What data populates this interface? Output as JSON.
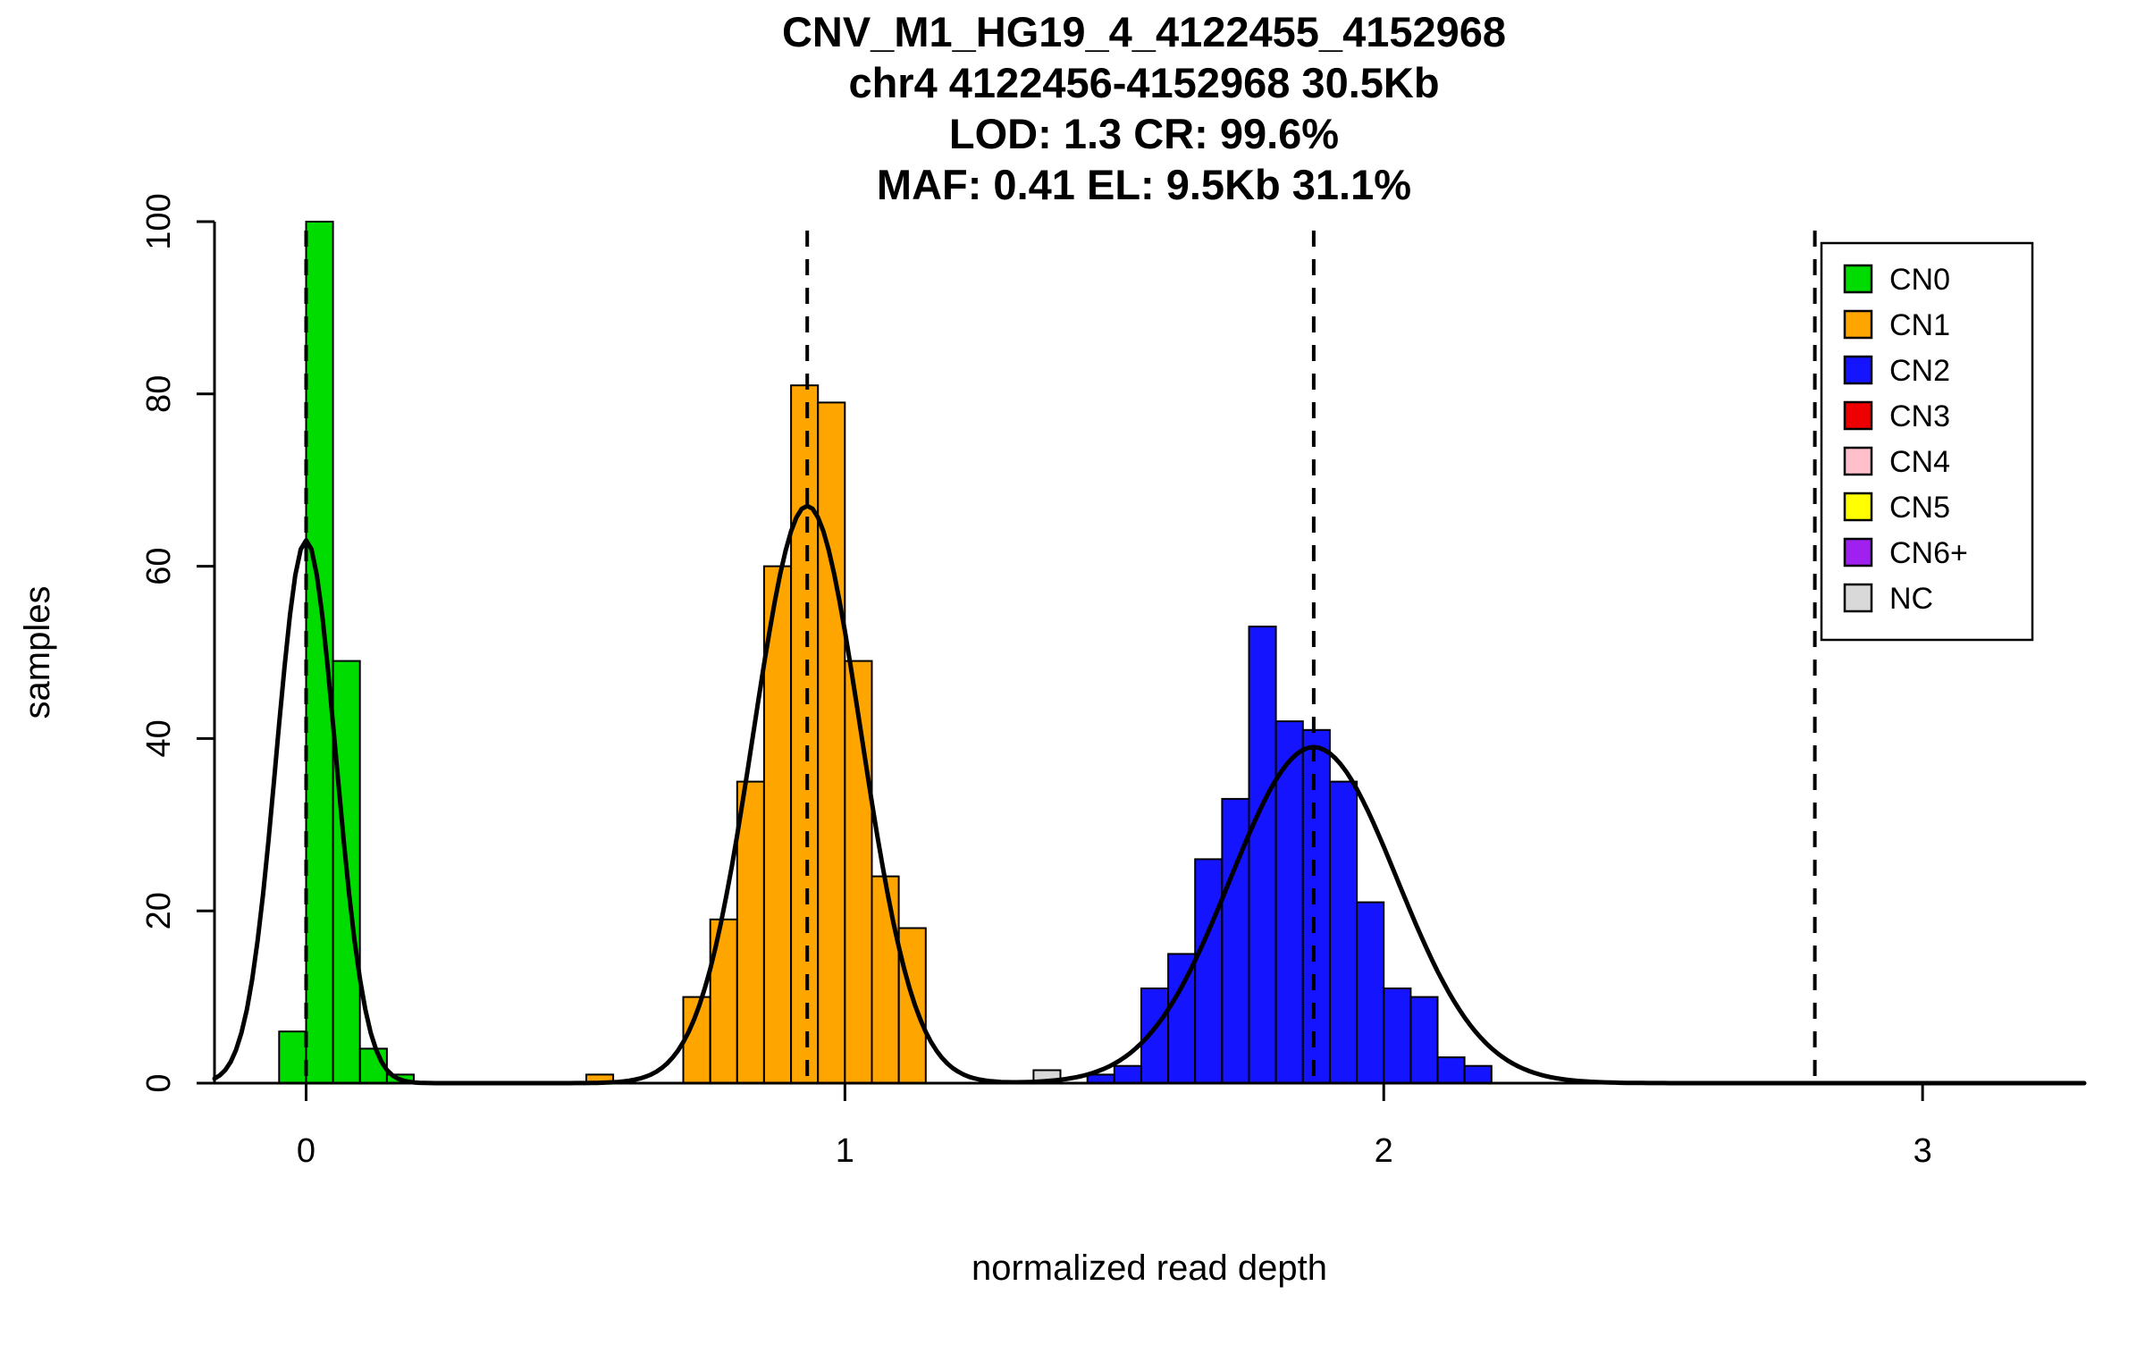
{
  "title": {
    "line1": "CNV_M1_HG19_4_4122455_4152968",
    "line2": "chr4 4122456-4152968 30.5Kb",
    "line3": "LOD: 1.3 CR: 99.6%",
    "line4": "MAF: 0.41 EL: 9.5Kb 31.1%"
  },
  "chart_data": {
    "type": "bar",
    "subtype": "histogram_with_density_curves",
    "xlabel": "normalized read depth",
    "ylabel": "samples",
    "xlim": [
      -0.17,
      3.3
    ],
    "ylim": [
      0,
      100
    ],
    "x_ticks": [
      0,
      1,
      2,
      3
    ],
    "y_ticks": [
      0,
      20,
      40,
      60,
      80,
      100
    ],
    "bin_width": 0.05,
    "grid": false,
    "legend_position": "top-right",
    "series": [
      {
        "name": "CN0",
        "color": "#00DB00",
        "bars": [
          {
            "x": -0.05,
            "h": 6
          },
          {
            "x": 0.0,
            "h": 100
          },
          {
            "x": 0.05,
            "h": 49
          },
          {
            "x": 0.1,
            "h": 4
          },
          {
            "x": 0.15,
            "h": 1
          }
        ]
      },
      {
        "name": "CN1",
        "color": "#FFA500",
        "bars": [
          {
            "x": 0.52,
            "h": 1
          },
          {
            "x": 0.7,
            "h": 10
          },
          {
            "x": 0.75,
            "h": 19
          },
          {
            "x": 0.8,
            "h": 35
          },
          {
            "x": 0.85,
            "h": 60
          },
          {
            "x": 0.9,
            "h": 81
          },
          {
            "x": 0.95,
            "h": 79
          },
          {
            "x": 1.0,
            "h": 49
          },
          {
            "x": 1.05,
            "h": 24
          },
          {
            "x": 1.1,
            "h": 18
          }
        ]
      },
      {
        "name": "NC",
        "color": "#D9D9D9",
        "bars": [
          {
            "x": 1.35,
            "h": 1.5
          }
        ]
      },
      {
        "name": "CN2",
        "color": "#1414FF",
        "bars": [
          {
            "x": 1.45,
            "h": 1
          },
          {
            "x": 1.5,
            "h": 2
          },
          {
            "x": 1.55,
            "h": 11
          },
          {
            "x": 1.6,
            "h": 15
          },
          {
            "x": 1.65,
            "h": 26
          },
          {
            "x": 1.7,
            "h": 33
          },
          {
            "x": 1.75,
            "h": 53
          },
          {
            "x": 1.8,
            "h": 42
          },
          {
            "x": 1.85,
            "h": 41
          },
          {
            "x": 1.9,
            "h": 35
          },
          {
            "x": 1.95,
            "h": 21
          },
          {
            "x": 2.0,
            "h": 11
          },
          {
            "x": 2.05,
            "h": 10
          },
          {
            "x": 2.1,
            "h": 3
          },
          {
            "x": 2.15,
            "h": 2
          }
        ]
      }
    ],
    "density_components": [
      {
        "mean": 0.0,
        "sd": 0.055,
        "peak": 63
      },
      {
        "mean": 0.93,
        "sd": 0.1,
        "peak": 67
      },
      {
        "mean": 1.87,
        "sd": 0.155,
        "peak": 39
      }
    ],
    "mean_lines": [
      0.0,
      0.93,
      1.87,
      2.8
    ],
    "legend": [
      {
        "label": "CN0",
        "color": "#00DB00"
      },
      {
        "label": "CN1",
        "color": "#FFA500"
      },
      {
        "label": "CN2",
        "color": "#1414FF"
      },
      {
        "label": "CN3",
        "color": "#EE0000"
      },
      {
        "label": "CN4",
        "color": "#FFC0CB"
      },
      {
        "label": "CN5",
        "color": "#FFFF00"
      },
      {
        "label": "CN6+",
        "color": "#A020F0"
      },
      {
        "label": "NC",
        "color": "#D9D9D9"
      }
    ]
  }
}
